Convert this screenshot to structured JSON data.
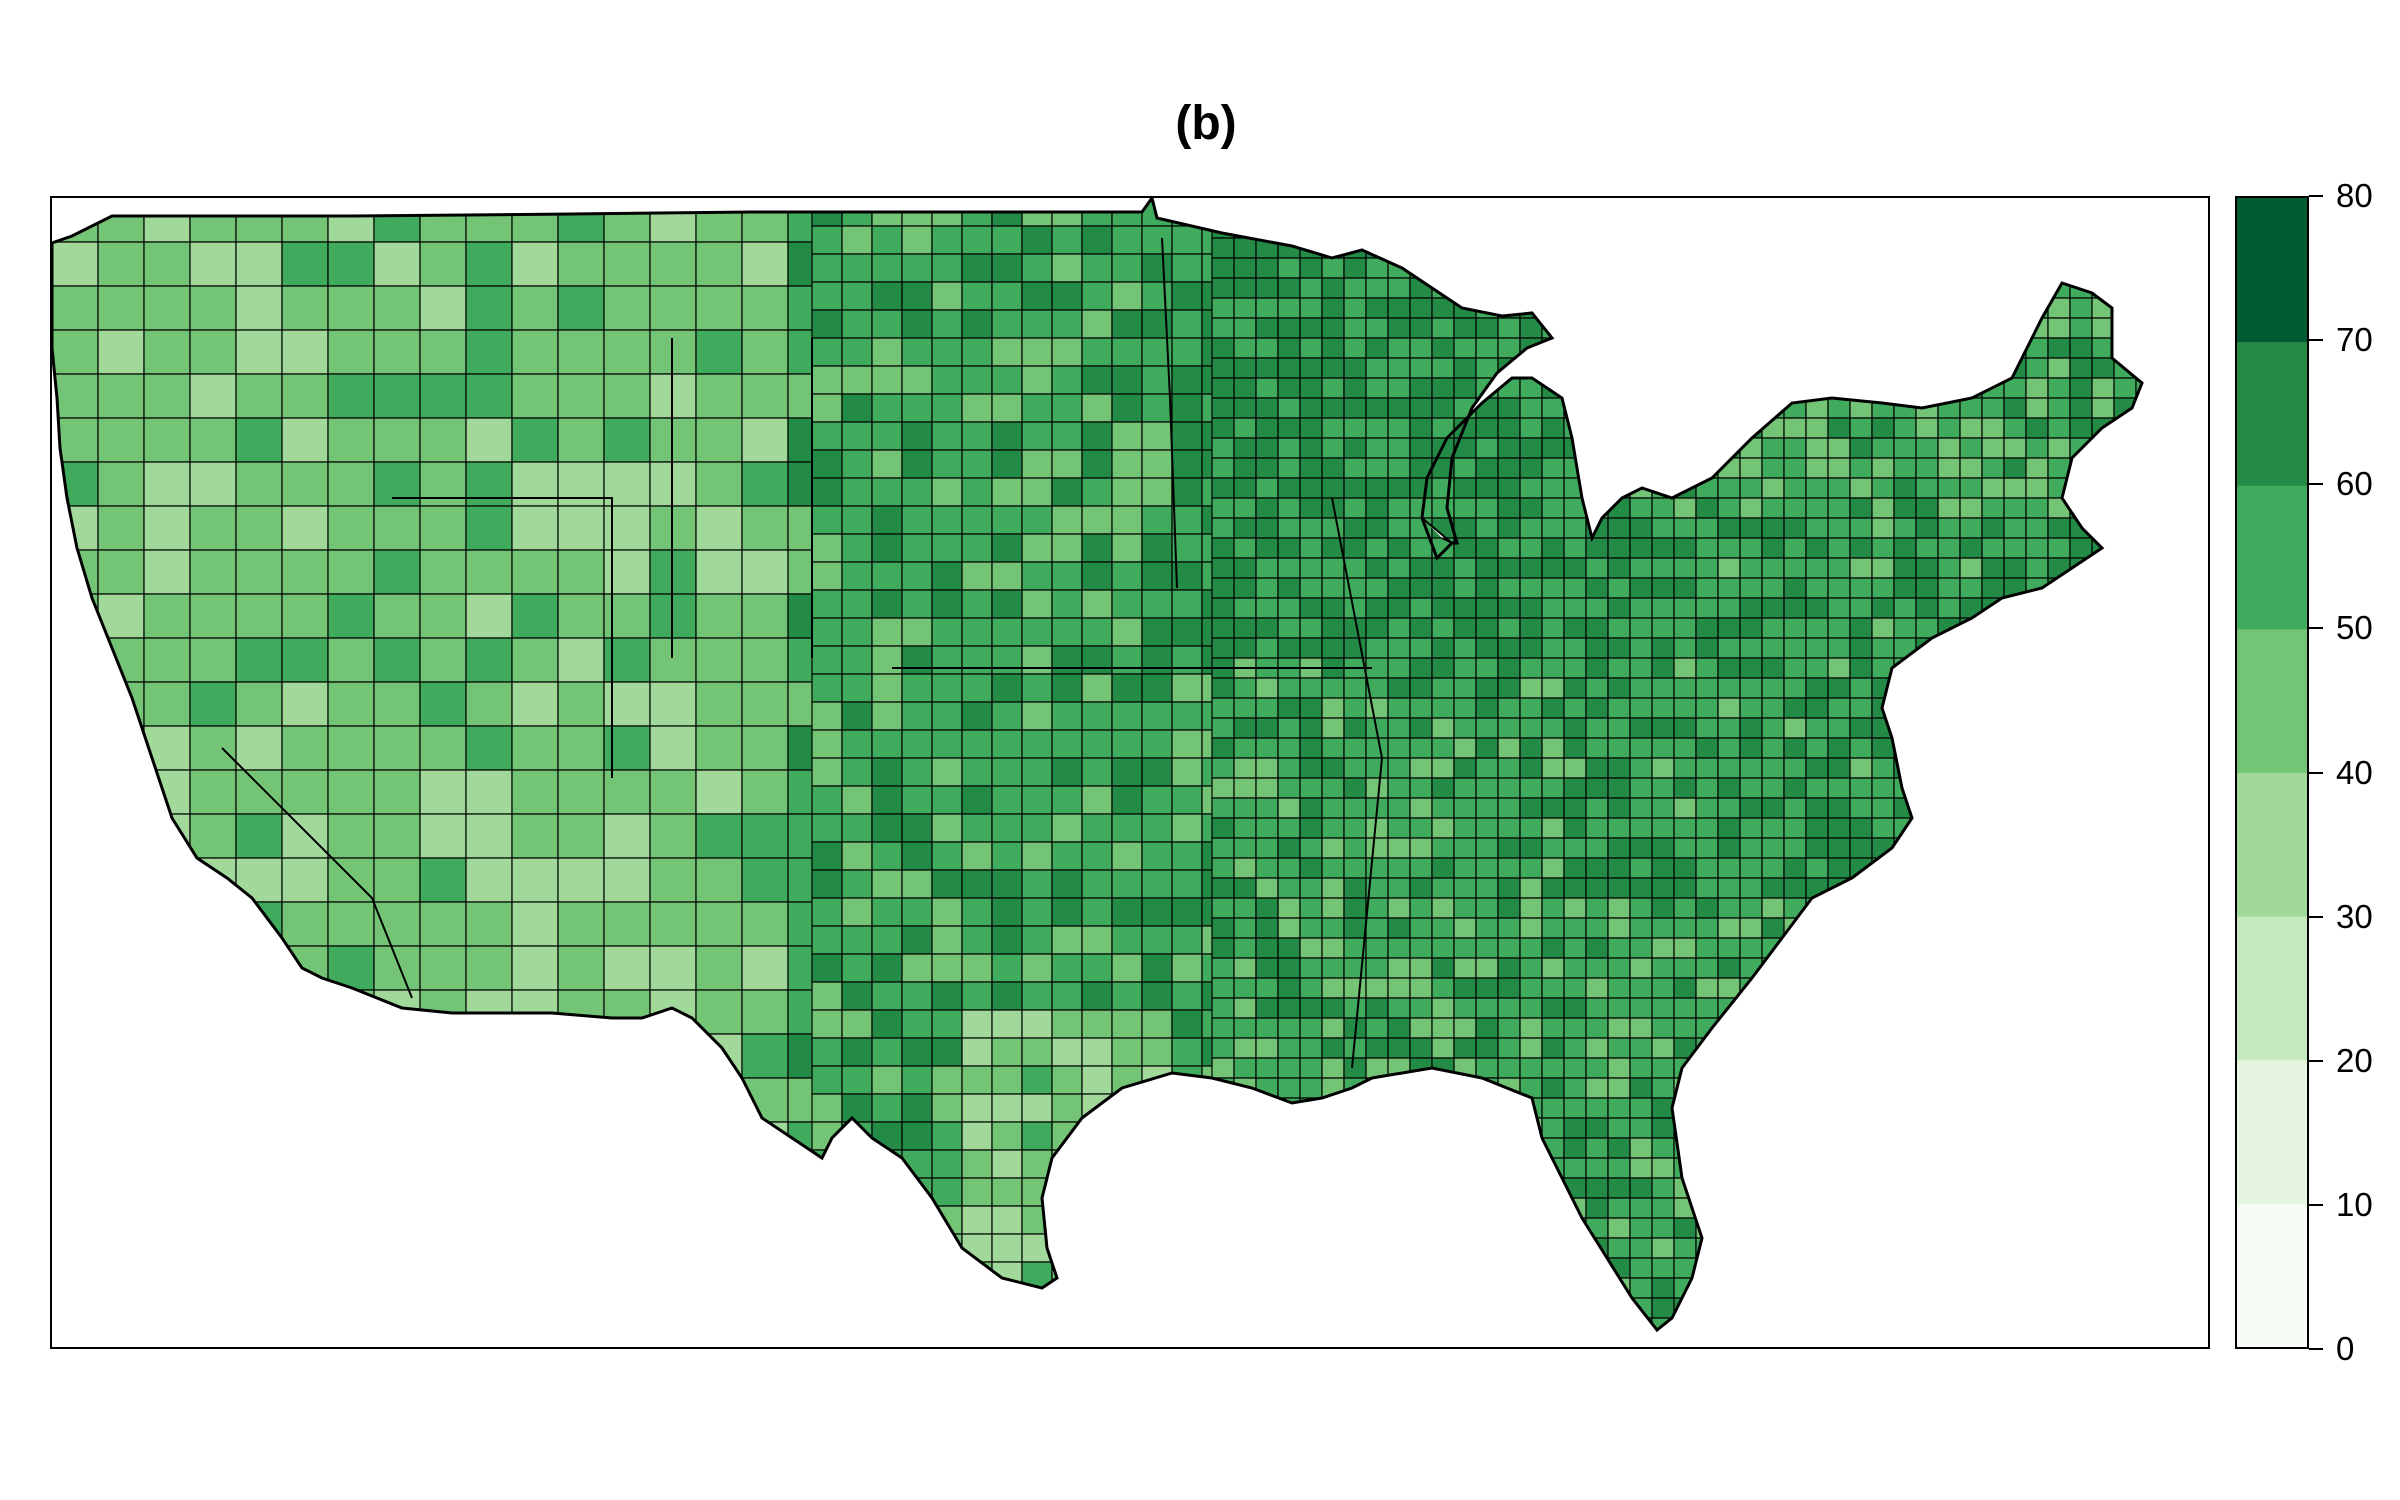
{
  "title": "(b)",
  "legend": {
    "ticks": [
      "0",
      "10",
      "20",
      "30",
      "40",
      "50",
      "60",
      "70",
      "80"
    ],
    "bins": [
      {
        "range": [
          0,
          10
        ],
        "color": "#f7fcf5"
      },
      {
        "range": [
          10,
          20
        ],
        "color": "#e5f5e0"
      },
      {
        "range": [
          20,
          30
        ],
        "color": "#c7e9c0"
      },
      {
        "range": [
          30,
          40
        ],
        "color": "#a1d99b"
      },
      {
        "range": [
          40,
          50
        ],
        "color": "#74c476"
      },
      {
        "range": [
          50,
          60
        ],
        "color": "#41ab5d"
      },
      {
        "range": [
          60,
          70
        ],
        "color": "#238b45"
      },
      {
        "range": [
          70,
          80
        ],
        "color": "#005a32"
      }
    ]
  },
  "map": {
    "region": "contiguous-us-counties",
    "color_scale": [
      "#f7fcf5",
      "#e5f5e0",
      "#c7e9c0",
      "#a1d99b",
      "#74c476",
      "#41ab5d",
      "#238b45",
      "#005a32"
    ],
    "border_color": "#000000"
  }
}
